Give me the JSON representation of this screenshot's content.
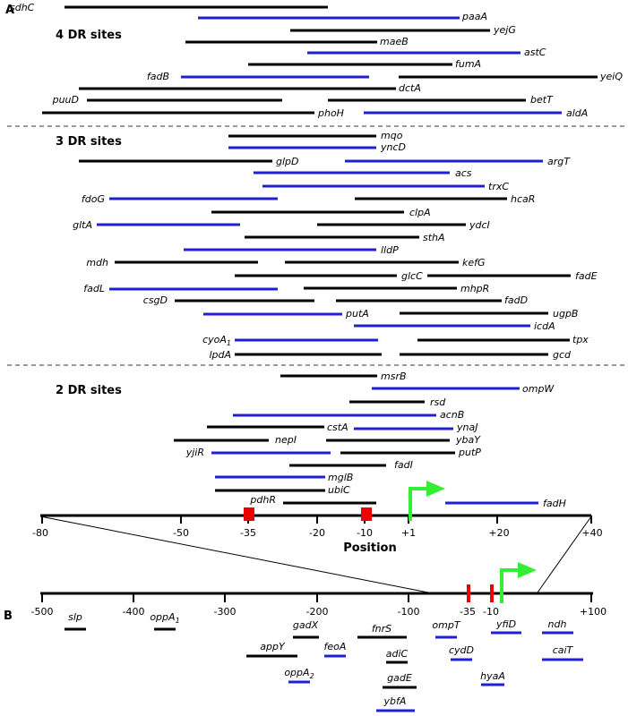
{
  "panels": {
    "a": "A",
    "b": "B"
  },
  "section_titles": {
    "four": "4 DR sites",
    "three": "3 DR sites",
    "two": "2 DR sites"
  },
  "axis_title": "Position",
  "colors": {
    "black": "#000000",
    "blue": "#1f1fd6",
    "red": "#ee0000",
    "green": "#33ee33",
    "separator": "#999999"
  },
  "panel_a_ticks": [
    "-80",
    "-50",
    "-35",
    "-20",
    "-10",
    "+1",
    "+20",
    "+40"
  ],
  "panel_b_ticks": [
    "-500",
    "-400",
    "-300",
    "-200",
    "-100",
    "-35",
    "-10",
    "+100"
  ],
  "panel_a_genes": [
    {
      "name": "sdhC",
      "color": "black"
    },
    {
      "name": "paaA",
      "color": "blue"
    },
    {
      "name": "yejG",
      "color": "black"
    },
    {
      "name": "maeB",
      "color": "black"
    },
    {
      "name": "astC",
      "color": "blue"
    },
    {
      "name": "fumA",
      "color": "black"
    },
    {
      "name": "fadB",
      "color": "blue"
    },
    {
      "name": "yeiQ",
      "color": "black"
    },
    {
      "name": "dctA",
      "color": "black"
    },
    {
      "name": "puuD",
      "color": "black"
    },
    {
      "name": "betT",
      "color": "black"
    },
    {
      "name": "phoH",
      "color": "black"
    },
    {
      "name": "aldA",
      "color": "blue"
    },
    {
      "name": "mqo",
      "color": "black"
    },
    {
      "name": "yncD",
      "color": "blue"
    },
    {
      "name": "glpD",
      "color": "black"
    },
    {
      "name": "argT",
      "color": "blue"
    },
    {
      "name": "acs",
      "color": "blue"
    },
    {
      "name": "trxC",
      "color": "blue"
    },
    {
      "name": "fdoG",
      "color": "blue"
    },
    {
      "name": "hcaR",
      "color": "black"
    },
    {
      "name": "clpA",
      "color": "black"
    },
    {
      "name": "gltA",
      "color": "blue"
    },
    {
      "name": "ydcI",
      "color": "black"
    },
    {
      "name": "sthA",
      "color": "black"
    },
    {
      "name": "lldP",
      "color": "blue"
    },
    {
      "name": "mdh",
      "color": "black"
    },
    {
      "name": "kefG",
      "color": "black"
    },
    {
      "name": "glcC",
      "color": "black"
    },
    {
      "name": "fadE",
      "color": "black"
    },
    {
      "name": "fadL",
      "color": "blue"
    },
    {
      "name": "mhpR",
      "color": "black"
    },
    {
      "name": "csgD",
      "color": "black"
    },
    {
      "name": "fadD",
      "color": "black"
    },
    {
      "name": "putA",
      "color": "blue"
    },
    {
      "name": "ugpB",
      "color": "black"
    },
    {
      "name": "icdA",
      "color": "blue"
    },
    {
      "name": "cyoA",
      "sub": "1",
      "color": "blue"
    },
    {
      "name": "tpx",
      "color": "black"
    },
    {
      "name": "lpdA",
      "color": "black"
    },
    {
      "name": "gcd",
      "color": "black"
    },
    {
      "name": "msrB",
      "color": "black"
    },
    {
      "name": "ompW",
      "color": "blue"
    },
    {
      "name": "rsd",
      "color": "black"
    },
    {
      "name": "acnB",
      "color": "blue"
    },
    {
      "name": "cstA",
      "color": "black"
    },
    {
      "name": "ynaJ",
      "color": "blue"
    },
    {
      "name": "nepI",
      "color": "black"
    },
    {
      "name": "ybaY",
      "color": "black"
    },
    {
      "name": "yjiR",
      "color": "blue"
    },
    {
      "name": "putP",
      "color": "black"
    },
    {
      "name": "fadI",
      "color": "black"
    },
    {
      "name": "mglB",
      "color": "blue"
    },
    {
      "name": "ubiC",
      "color": "black"
    },
    {
      "name": "pdhR",
      "color": "black"
    },
    {
      "name": "fadH",
      "color": "blue"
    }
  ],
  "panel_b_genes": [
    {
      "name": "slp",
      "color": "black"
    },
    {
      "name": "oppA",
      "sub": "1",
      "color": "black"
    },
    {
      "name": "gadX",
      "color": "black"
    },
    {
      "name": "fnrS",
      "color": "black"
    },
    {
      "name": "ompT",
      "color": "blue"
    },
    {
      "name": "yfiD",
      "color": "blue"
    },
    {
      "name": "ndh",
      "color": "blue"
    },
    {
      "name": "appY",
      "color": "black"
    },
    {
      "name": "feoA",
      "color": "blue"
    },
    {
      "name": "adiC",
      "color": "black"
    },
    {
      "name": "cydD",
      "color": "blue"
    },
    {
      "name": "caiT",
      "color": "blue"
    },
    {
      "name": "oppA",
      "sub": "2",
      "color": "blue"
    },
    {
      "name": "gadE",
      "color": "black"
    },
    {
      "name": "hyaA",
      "color": "blue"
    },
    {
      "name": "ybfA",
      "color": "blue"
    }
  ]
}
